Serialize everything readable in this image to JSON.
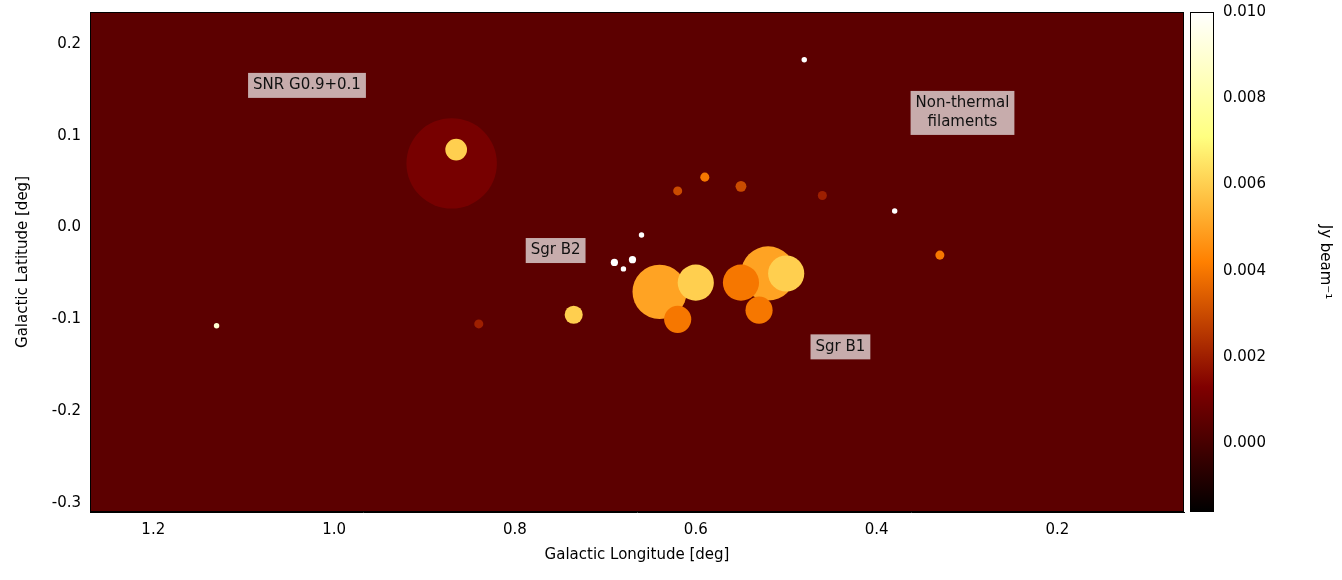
{
  "chart_data": {
    "type": "scatter",
    "x_label": "Galactic Longitude [deg]",
    "y_label": "Galactic Latitude [deg]",
    "xlim": [
      1.27,
      0.06
    ],
    "ylim": [
      -0.31,
      0.235
    ],
    "xticks": [
      1.2,
      {
        "value": 1.0,
        "label": "1.0"
      },
      0.8,
      0.6,
      0.4,
      0.2
    ],
    "yticks": [
      -0.3,
      -0.2,
      -0.1,
      {
        "value": 0.0,
        "label": "0.0"
      },
      0.1,
      0.2
    ],
    "grid": false,
    "color": "afmhot",
    "background": 0.0005,
    "colorbar": {
      "label": "Jy beam⁻¹",
      "range": [
        -0.0016,
        0.01
      ],
      "ticks": [
        {
          "value": 0,
          "label": "0.000"
        },
        {
          "value": 0.002,
          "label": "0.002"
        },
        {
          "value": 0.004,
          "label": "0.004"
        },
        {
          "value": 0.006,
          "label": "0.006"
        },
        {
          "value": 0.008,
          "label": "0.008"
        },
        {
          "value": 0.01,
          "label": "0.010"
        }
      ]
    },
    "sources": [
      {
        "l": 0.87,
        "b": 0.07,
        "radius": 0.05,
        "flux": 0.0011
      },
      {
        "l": 0.64,
        "b": -0.07,
        "radius": 0.03,
        "flux": 0.005
      },
      {
        "l": 0.52,
        "b": -0.05,
        "radius": 0.03,
        "flux": 0.005
      },
      {
        "l": 0.6,
        "b": -0.06,
        "radius": 0.02,
        "flux": 0.006
      },
      {
        "l": 0.55,
        "b": -0.06,
        "radius": 0.02,
        "flux": 0.004
      },
      {
        "l": 0.5,
        "b": -0.05,
        "radius": 0.02,
        "flux": 0.006
      },
      {
        "l": 0.62,
        "b": -0.1,
        "radius": 0.015,
        "flux": 0.004
      },
      {
        "l": 0.53,
        "b": -0.09,
        "radius": 0.015,
        "flux": 0.004
      },
      {
        "l": 0.865,
        "b": 0.085,
        "radius": 0.012,
        "flux": 0.006
      },
      {
        "l": 0.735,
        "b": -0.095,
        "radius": 0.01,
        "flux": 0.006
      },
      {
        "l": 0.55,
        "b": 0.045,
        "radius": 0.006,
        "flux": 0.003
      },
      {
        "l": 0.62,
        "b": 0.04,
        "radius": 0.005,
        "flux": 0.003
      },
      {
        "l": 0.59,
        "b": 0.055,
        "radius": 0.005,
        "flux": 0.004
      },
      {
        "l": 0.46,
        "b": 0.035,
        "radius": 0.005,
        "flux": 0.002
      },
      {
        "l": 0.84,
        "b": -0.105,
        "radius": 0.005,
        "flux": 0.002
      },
      {
        "l": 0.33,
        "b": -0.03,
        "radius": 0.005,
        "flux": 0.004
      },
      {
        "l": 0.67,
        "b": -0.035,
        "radius": 0.004,
        "flux": 0.012
      },
      {
        "l": 0.69,
        "b": -0.038,
        "radius": 0.004,
        "flux": 0.012
      },
      {
        "l": 0.68,
        "b": -0.045,
        "radius": 0.003,
        "flux": 0.012
      },
      {
        "l": 0.66,
        "b": -0.008,
        "radius": 0.003,
        "flux": 0.012
      },
      {
        "l": 1.13,
        "b": -0.107,
        "radius": 0.003,
        "flux": 0.009
      },
      {
        "l": 0.38,
        "b": 0.018,
        "radius": 0.003,
        "flux": 0.01
      },
      {
        "l": 0.48,
        "b": 0.183,
        "radius": 0.003,
        "flux": 0.01
      }
    ],
    "annotations": [
      {
        "text": "SNR G0.9+0.1",
        "l": 1.03,
        "b": 0.155
      },
      {
        "text": "Sgr B2",
        "l": 0.755,
        "b": -0.025
      },
      {
        "text": "Sgr B1",
        "l": 0.44,
        "b": -0.13
      },
      {
        "text": "Non-thermal\nfilaments",
        "l": 0.305,
        "b": 0.125
      }
    ]
  }
}
